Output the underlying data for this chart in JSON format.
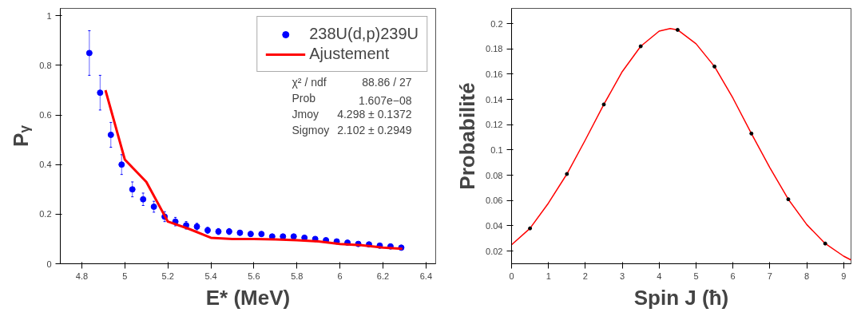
{
  "chart_data": [
    {
      "type": "scatter",
      "ylabel": "Pᵧ",
      "xlabel": "E* (MeV)",
      "xlim": [
        4.7,
        6.445
      ],
      "ylim": [
        0,
        1.03
      ],
      "xticks": [
        4.8,
        5,
        5.2,
        5.4,
        5.6,
        5.8,
        6,
        6.2,
        6.4
      ],
      "yticks": [
        0,
        0.2,
        0.4,
        0.6,
        0.8,
        1
      ],
      "grid": false,
      "legend": "top right",
      "series": [
        {
          "name": "238U(d,p)239U",
          "marker": "circle",
          "color": "#0000ff",
          "x": [
            4.835,
            4.885,
            4.935,
            4.985,
            5.035,
            5.085,
            5.135,
            5.185,
            5.235,
            5.285,
            5.335,
            5.385,
            5.435,
            5.485,
            5.535,
            5.585,
            5.635,
            5.685,
            5.735,
            5.785,
            5.835,
            5.885,
            5.935,
            5.985,
            6.035,
            6.085,
            6.135,
            6.185,
            6.235,
            6.285
          ],
          "values": [
            0.85,
            0.69,
            0.52,
            0.4,
            0.3,
            0.26,
            0.23,
            0.19,
            0.17,
            0.155,
            0.15,
            0.135,
            0.13,
            0.13,
            0.125,
            0.12,
            0.12,
            0.11,
            0.11,
            0.11,
            0.105,
            0.1,
            0.095,
            0.09,
            0.085,
            0.08,
            0.078,
            0.073,
            0.07,
            0.065
          ],
          "errors": [
            0.09,
            0.07,
            0.05,
            0.04,
            0.03,
            0.025,
            0.022,
            0.02,
            0.017,
            0.015,
            0.013,
            0.012,
            0.012,
            0.012,
            0.01,
            0.01,
            0.009,
            0.009,
            0.009,
            0.008,
            0.008,
            0.008,
            0.007,
            0.007,
            0.006,
            0.006,
            0.006,
            0.005,
            0.005,
            0.005
          ]
        },
        {
          "name": "Ajustement",
          "type": "line",
          "color": "#ff0000",
          "x": [
            4.91,
            5.0,
            5.1,
            5.2,
            5.3,
            5.4,
            5.5,
            5.6,
            5.7,
            5.8,
            5.9,
            6.0,
            6.1,
            6.2,
            6.29
          ],
          "values": [
            0.7,
            0.42,
            0.33,
            0.17,
            0.14,
            0.105,
            0.1,
            0.1,
            0.098,
            0.095,
            0.09,
            0.08,
            0.075,
            0.065,
            0.06
          ]
        }
      ],
      "annotations": [
        "χ² / ndf",
        "88.86 / 27",
        "Prob",
        "1.607e−08",
        "Jmoy",
        "4.298 ± 0.1372",
        "Sigmoy",
        "2.102 ± 0.2949"
      ]
    },
    {
      "type": "scatter",
      "ylabel": "Probabilité",
      "xlabel": "Spin J (ħ)",
      "xlim": [
        0,
        9.2
      ],
      "ylim": [
        0.01,
        0.212
      ],
      "xticks": [
        0,
        1,
        2,
        3,
        4,
        5,
        6,
        7,
        8,
        9
      ],
      "yticks": [
        0.02,
        0.04,
        0.06,
        0.08,
        0.1,
        0.12,
        0.14,
        0.16,
        0.18,
        0.2
      ],
      "grid": false,
      "legend": false,
      "series": [
        {
          "type": "line",
          "color": "#ff0000",
          "x": [
            0,
            0.5,
            1,
            1.5,
            2,
            2.5,
            3,
            3.5,
            4,
            4.3,
            4.5,
            5,
            5.5,
            6,
            6.5,
            7,
            7.5,
            8,
            8.5,
            9,
            9.2
          ],
          "values": [
            0.025,
            0.038,
            0.058,
            0.081,
            0.108,
            0.136,
            0.162,
            0.182,
            0.194,
            0.196,
            0.195,
            0.184,
            0.166,
            0.141,
            0.113,
            0.086,
            0.061,
            0.041,
            0.026,
            0.016,
            0.013
          ]
        },
        {
          "marker": "circle",
          "color": "#000000",
          "x": [
            0.5,
            1.5,
            2.5,
            3.5,
            4.5,
            5.5,
            6.5,
            7.5,
            8.5
          ],
          "values": [
            0.038,
            0.081,
            0.136,
            0.182,
            0.195,
            0.166,
            0.113,
            0.061,
            0.026
          ]
        }
      ]
    }
  ]
}
